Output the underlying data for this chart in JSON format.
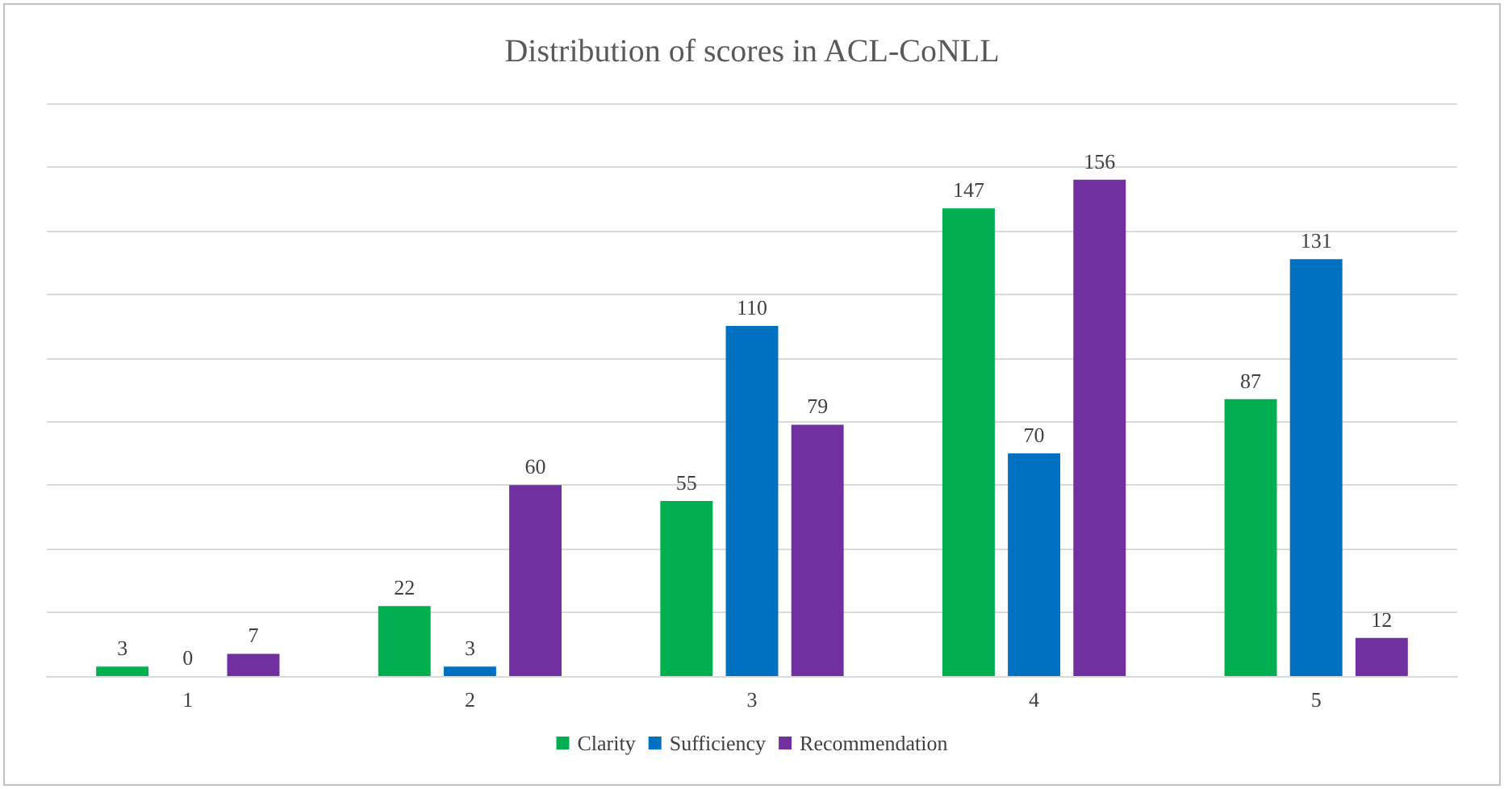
{
  "chart_data": {
    "type": "bar",
    "title": "Distribution of scores in ACL-CoNLL",
    "categories": [
      "1",
      "2",
      "3",
      "4",
      "5"
    ],
    "series": [
      {
        "name": "Clarity",
        "color": "#00b050",
        "values": [
          3,
          22,
          55,
          147,
          87
        ]
      },
      {
        "name": "Sufficiency",
        "color": "#0070c0",
        "values": [
          0,
          3,
          110,
          70,
          131
        ]
      },
      {
        "name": "Recommendation",
        "color": "#7030a0",
        "values": [
          7,
          60,
          79,
          156,
          12
        ]
      }
    ],
    "ylim": [
      0,
      180
    ],
    "yticks": [
      {
        "value": 0,
        "label": null
      },
      {
        "value": 20,
        "label": null
      },
      {
        "value": 40,
        "label": null
      },
      {
        "value": 60,
        "label": null
      },
      {
        "value": 80,
        "label": null
      },
      {
        "value": 100,
        "label": null
      },
      {
        "value": 120,
        "label": null
      },
      {
        "value": 140,
        "label": null
      },
      {
        "value": 160,
        "label": null
      },
      {
        "value": 180,
        "label": null
      }
    ],
    "tick_labels": "x",
    "grid": "y",
    "legend": "bottom",
    "data_labels": true
  }
}
